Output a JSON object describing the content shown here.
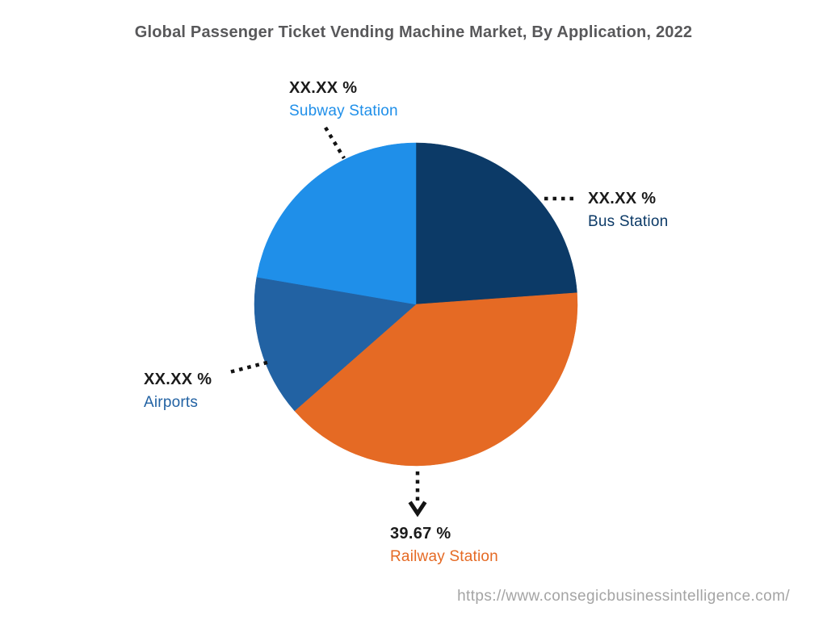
{
  "footer": {
    "url": "https://www.consegicbusinessintelligence.com/"
  },
  "colors": {
    "background": "#ffffff",
    "title_text": "#58585a",
    "percent_text": "#1b1b1b",
    "leader_line": "#141414",
    "watermark_text": "#a4a4a4"
  },
  "chart_data": {
    "type": "pie",
    "title": "Global Passenger Ticket Vending Machine Market, By Application, 2022",
    "start_angle_deg": 0,
    "direction": "clockwise",
    "legend_position": "callout-labels",
    "segments": [
      {
        "id": "bus-station",
        "label": "Bus Station",
        "display_value": "XX.XX %",
        "percent": 23.86,
        "color": "#0c3a67"
      },
      {
        "id": "railway-station",
        "label": "Railway Station",
        "display_value": "39.67 %",
        "percent": 39.67,
        "color": "#e56a24"
      },
      {
        "id": "airports",
        "label": "Airports",
        "display_value": "XX.XX %",
        "percent": 14.17,
        "color": "#2262a3"
      },
      {
        "id": "subway-station",
        "label": "Subway Station",
        "display_value": "XX.XX %",
        "percent": 22.3,
        "color": "#1f8fe9"
      }
    ]
  }
}
